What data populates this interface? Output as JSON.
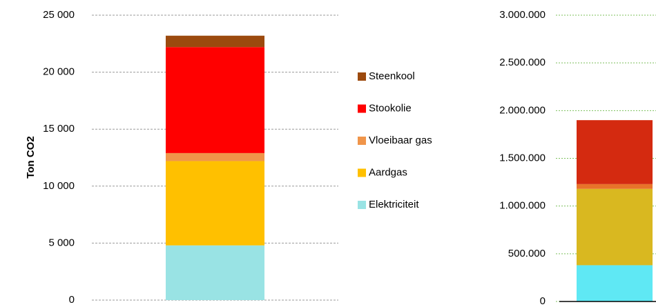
{
  "chart_data": [
    {
      "type": "bar",
      "stacked": true,
      "y_label": "Ton CO2",
      "categories": [
        null
      ],
      "series": [
        {
          "name": "Elektriciteit",
          "color": "#99e3e4",
          "values": [
            4800
          ]
        },
        {
          "name": "Aardgas",
          "color": "#ffc000",
          "values": [
            7400
          ]
        },
        {
          "name": "Vloeibaar gas",
          "color": "#f0954a",
          "values": [
            700
          ]
        },
        {
          "name": "Stookolie",
          "color": "#ff0000",
          "values": [
            9300
          ]
        },
        {
          "name": "Steenkool",
          "color": "#9c4a0e",
          "values": [
            1000
          ]
        }
      ],
      "ylim": [
        0,
        25000
      ],
      "yticks": [
        0,
        {
          "value": 5000,
          "label": "5 000"
        },
        {
          "value": 10000,
          "label": "10 000"
        },
        {
          "value": 15000,
          "label": "15 000"
        },
        {
          "value": 20000,
          "label": "20 000"
        },
        {
          "value": 25000,
          "label": "25 000"
        }
      ],
      "grid": true,
      "legend": "right"
    },
    {
      "type": "bar",
      "stacked": true,
      "categories": [
        null
      ],
      "series": [
        {
          "color": "#5fe8f4",
          "values": [
            380000
          ]
        },
        {
          "color": "#d9b820",
          "values": [
            800000
          ]
        },
        {
          "color": "#e8732a",
          "values": [
            50000
          ]
        },
        {
          "color": "#d42a10",
          "values": [
            670000
          ]
        }
      ],
      "ylim": [
        0,
        3000000
      ],
      "yticks": [
        0,
        {
          "value": 500000,
          "label": "500.000"
        },
        {
          "value": 1000000,
          "label": "1.000.000"
        },
        {
          "value": 1500000,
          "label": "1.500.000"
        },
        {
          "value": 2000000,
          "label": "2.000.000"
        },
        {
          "value": 2500000,
          "label": "2.500.000"
        },
        {
          "value": 3000000,
          "label": "3.000.000"
        }
      ],
      "grid": true
    }
  ]
}
